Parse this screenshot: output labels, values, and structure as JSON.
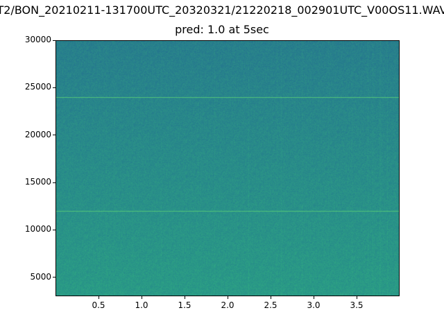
{
  "chart_data": {
    "type": "heatmap",
    "title": "T2/BON_20210211-131700UTC_20320321/21220218_002901UTC_V00OS11.WAV",
    "subtitle": "pred: 1.0 at 5sec",
    "xlabel": "",
    "ylabel": "",
    "xlim": [
      0,
      4
    ],
    "ylim": [
      3000,
      30000
    ],
    "xticks": [
      0.5,
      1.0,
      1.5,
      2.0,
      2.5,
      3.0,
      3.5
    ],
    "xtick_labels": [
      "0.5",
      "1.0",
      "1.5",
      "2.0",
      "2.5",
      "3.0",
      "3.5"
    ],
    "yticks": [
      5000,
      10000,
      15000,
      20000,
      25000,
      30000
    ],
    "ytick_labels": [
      "5000",
      "10000",
      "15000",
      "20000",
      "25000",
      "30000"
    ],
    "colormap": "viridis",
    "tonal_lines_hz": [
      12000,
      24000
    ],
    "colors": {
      "base_high": "#287f8c",
      "base_low": "#2a9a86",
      "tonal": "#52c47a"
    }
  }
}
